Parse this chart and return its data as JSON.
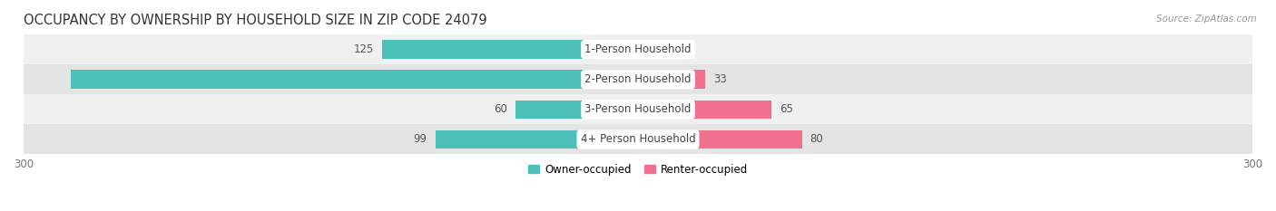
{
  "title": "OCCUPANCY BY OWNERSHIP BY HOUSEHOLD SIZE IN ZIP CODE 24079",
  "source": "Source: ZipAtlas.com",
  "categories": [
    "1-Person Household",
    "2-Person Household",
    "3-Person Household",
    "4+ Person Household"
  ],
  "owner_values": [
    125,
    277,
    60,
    99
  ],
  "renter_values": [
    0,
    33,
    65,
    80
  ],
  "owner_color": "#4BBFB8",
  "renter_color": "#F07090",
  "row_bg_light": "#f0f0f0",
  "row_bg_dark": "#e4e4e4",
  "axis_min": -300,
  "axis_max": 300,
  "legend_owner": "Owner-occupied",
  "legend_renter": "Renter-occupied",
  "title_fontsize": 10.5,
  "bar_height": 0.62,
  "label_fontsize": 8.5,
  "value_fontsize": 8.5
}
